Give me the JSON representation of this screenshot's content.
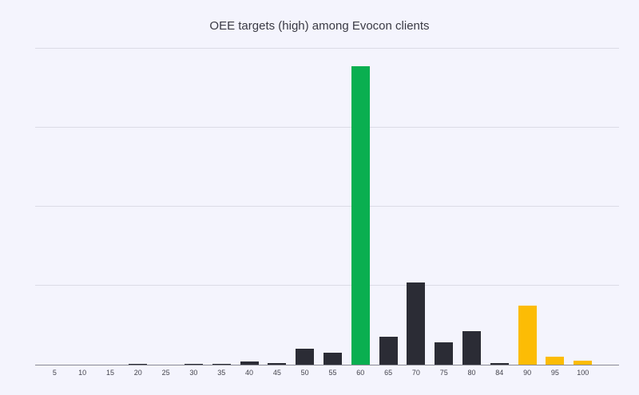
{
  "chart_data": {
    "type": "bar",
    "title": "OEE targets (high) among Evocon clients",
    "xlabel": "",
    "ylabel": "",
    "ylim": [
      0,
      40
    ],
    "grid": true,
    "gridlines": [
      10,
      20,
      30,
      40
    ],
    "categories": [
      "5",
      "10",
      "15",
      "20",
      "25",
      "30",
      "35",
      "40",
      "45",
      "50",
      "55",
      "60",
      "65",
      "70",
      "75",
      "80",
      "84",
      "90",
      "95",
      "100"
    ],
    "values": [
      0,
      0,
      0,
      0.1,
      0,
      0.15,
      0.1,
      0.45,
      0.25,
      2.0,
      1.5,
      37.8,
      3.5,
      10.4,
      2.8,
      4.2,
      0.2,
      7.5,
      1.0,
      0.5
    ],
    "colors": [
      "#2b2c35",
      "#2b2c35",
      "#2b2c35",
      "#2b2c35",
      "#2b2c35",
      "#2b2c35",
      "#2b2c35",
      "#2b2c35",
      "#2b2c35",
      "#2b2c35",
      "#2b2c35",
      "#0aaf50",
      "#2b2c35",
      "#2b2c35",
      "#2b2c35",
      "#2b2c35",
      "#2b2c35",
      "#fcbc05",
      "#fcbc05",
      "#fcbc05"
    ]
  },
  "colors": {
    "background": "#f4f4fd",
    "default_bar": "#2b2c35",
    "highlight_green": "#0aaf50",
    "highlight_yellow": "#fcbc05"
  }
}
